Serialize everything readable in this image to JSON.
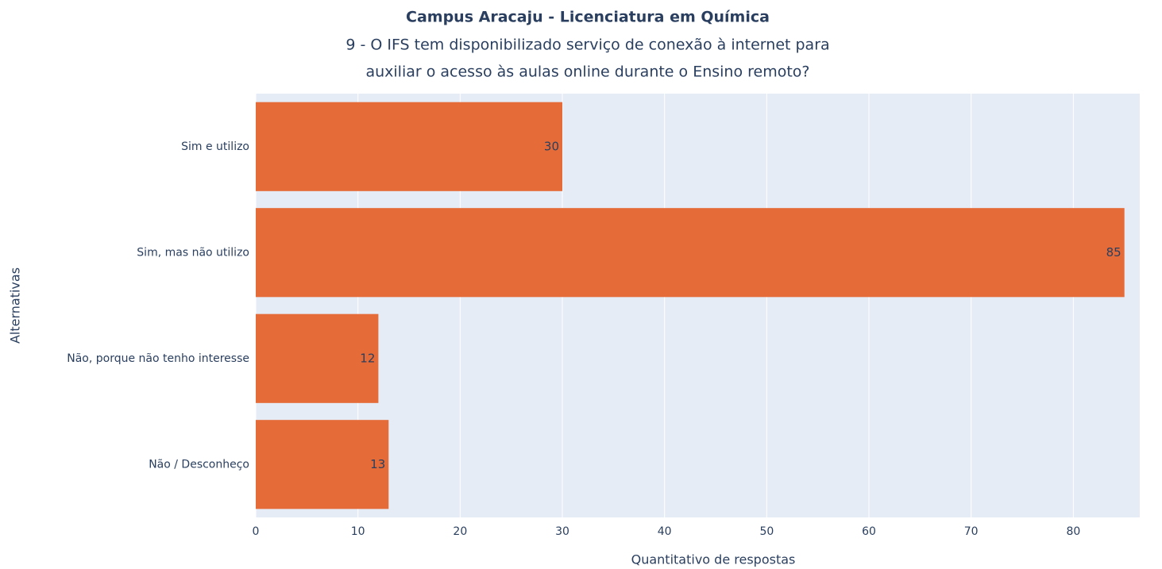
{
  "chart_data": {
    "type": "hbar",
    "title": "Campus Aracaju - Licenciatura em Química",
    "subtitle": [
      "9 - O IFS tem disponibilizado serviço de conexão à internet para",
      "auxiliar o acesso às aulas online durante o Ensino remoto?"
    ],
    "categories": [
      "Sim e utilizo",
      "Sim, mas não utilizo",
      "Não, porque não tenho interesse",
      "Não / Desconheço"
    ],
    "values": [
      30,
      85,
      12,
      13
    ],
    "color": "#e56b38",
    "xlim": [
      0,
      86.5
    ],
    "xticks": [
      0,
      10,
      20,
      30,
      40,
      50,
      60,
      70,
      80
    ],
    "xlabel": "Quantitativo de respostas",
    "ylabel": "Alternativas",
    "grid": true
  }
}
